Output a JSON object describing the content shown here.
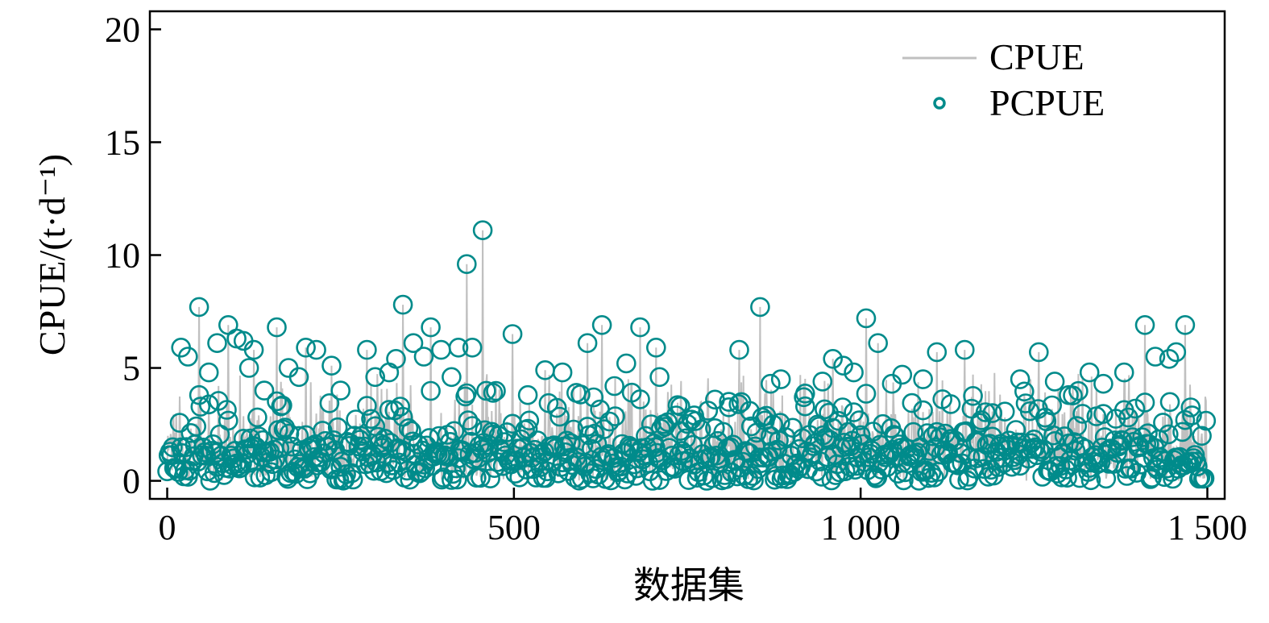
{
  "chart_data": {
    "type": "scatter",
    "xlabel": "数据集",
    "ylabel": "CPUE/(t·d⁻¹)",
    "xlim": [
      -25,
      1525
    ],
    "ylim": [
      -0.8,
      20.8
    ],
    "xticks": [
      0,
      500,
      1000,
      1500
    ],
    "xtick_labels": [
      "0",
      "500",
      "1 000",
      "1 500"
    ],
    "yticks": [
      0,
      5,
      10,
      15,
      20
    ],
    "ytick_labels": [
      "0",
      "5",
      "10",
      "15",
      "20"
    ],
    "grid": false,
    "legend_position": "top-right",
    "n_points": 1500,
    "series": [
      {
        "name": "CPUE",
        "kind": "line",
        "color": "#c0c0c0",
        "points": [
          [
            46,
            7.7
          ],
          [
            88,
            6.9
          ],
          [
            125,
            5.8
          ],
          [
            158,
            6.8
          ],
          [
            200,
            5.9
          ],
          [
            237,
            5.1
          ],
          [
            288,
            5.8
          ],
          [
            340,
            7.8
          ],
          [
            380,
            6.8
          ],
          [
            432,
            9.6
          ],
          [
            455,
            11.1
          ],
          [
            498,
            6.5
          ],
          [
            545,
            4.9
          ],
          [
            606,
            6.1
          ],
          [
            627,
            6.9
          ],
          [
            682,
            6.8
          ],
          [
            705,
            5.9
          ],
          [
            825,
            5.8
          ],
          [
            855,
            7.7
          ],
          [
            960,
            5.4
          ],
          [
            1008,
            7.2
          ],
          [
            1025,
            6.1
          ],
          [
            1110,
            5.7
          ],
          [
            1150,
            5.8
          ],
          [
            1257,
            5.7
          ],
          [
            1410,
            6.9
          ],
          [
            1468,
            6.9
          ]
        ]
      },
      {
        "name": "PCPUE",
        "kind": "scatter",
        "color": "#008b8b",
        "points": [
          [
            20,
            5.9
          ],
          [
            30,
            5.5
          ],
          [
            46,
            7.7
          ],
          [
            60,
            4.8
          ],
          [
            72,
            6.1
          ],
          [
            88,
            6.9
          ],
          [
            100,
            6.3
          ],
          [
            110,
            6.2
          ],
          [
            118,
            5.0
          ],
          [
            125,
            5.8
          ],
          [
            140,
            4.0
          ],
          [
            158,
            6.8
          ],
          [
            175,
            5.0
          ],
          [
            190,
            4.6
          ],
          [
            200,
            5.9
          ],
          [
            215,
            5.8
          ],
          [
            237,
            5.1
          ],
          [
            250,
            4.0
          ],
          [
            288,
            5.8
          ],
          [
            300,
            4.6
          ],
          [
            320,
            4.8
          ],
          [
            330,
            5.4
          ],
          [
            340,
            7.8
          ],
          [
            355,
            6.1
          ],
          [
            370,
            5.5
          ],
          [
            380,
            6.8
          ],
          [
            395,
            5.8
          ],
          [
            410,
            4.6
          ],
          [
            420,
            5.9
          ],
          [
            432,
            9.6
          ],
          [
            440,
            5.9
          ],
          [
            455,
            11.1
          ],
          [
            470,
            3.9
          ],
          [
            498,
            6.5
          ],
          [
            520,
            3.8
          ],
          [
            545,
            4.9
          ],
          [
            570,
            4.8
          ],
          [
            590,
            3.9
          ],
          [
            606,
            6.1
          ],
          [
            615,
            3.7
          ],
          [
            627,
            6.9
          ],
          [
            645,
            4.2
          ],
          [
            662,
            5.2
          ],
          [
            682,
            6.8
          ],
          [
            705,
            5.9
          ],
          [
            710,
            4.6
          ],
          [
            740,
            3.3
          ],
          [
            760,
            2.9
          ],
          [
            790,
            3.6
          ],
          [
            810,
            3.5
          ],
          [
            825,
            5.8
          ],
          [
            840,
            3.1
          ],
          [
            855,
            7.7
          ],
          [
            870,
            4.3
          ],
          [
            885,
            4.5
          ],
          [
            920,
            3.3
          ],
          [
            945,
            4.4
          ],
          [
            960,
            5.4
          ],
          [
            975,
            5.1
          ],
          [
            990,
            4.8
          ],
          [
            1008,
            7.2
          ],
          [
            1025,
            6.1
          ],
          [
            1045,
            4.3
          ],
          [
            1060,
            4.7
          ],
          [
            1090,
            4.5
          ],
          [
            1110,
            5.7
          ],
          [
            1130,
            3.4
          ],
          [
            1150,
            5.8
          ],
          [
            1190,
            3.0
          ],
          [
            1230,
            4.5
          ],
          [
            1257,
            5.7
          ],
          [
            1280,
            4.4
          ],
          [
            1300,
            3.8
          ],
          [
            1330,
            4.8
          ],
          [
            1350,
            4.3
          ],
          [
            1380,
            4.8
          ],
          [
            1410,
            6.9
          ],
          [
            1425,
            5.5
          ],
          [
            1445,
            5.4
          ],
          [
            1455,
            5.7
          ],
          [
            1468,
            6.9
          ],
          [
            1478,
            2.9
          ]
        ]
      }
    ]
  }
}
